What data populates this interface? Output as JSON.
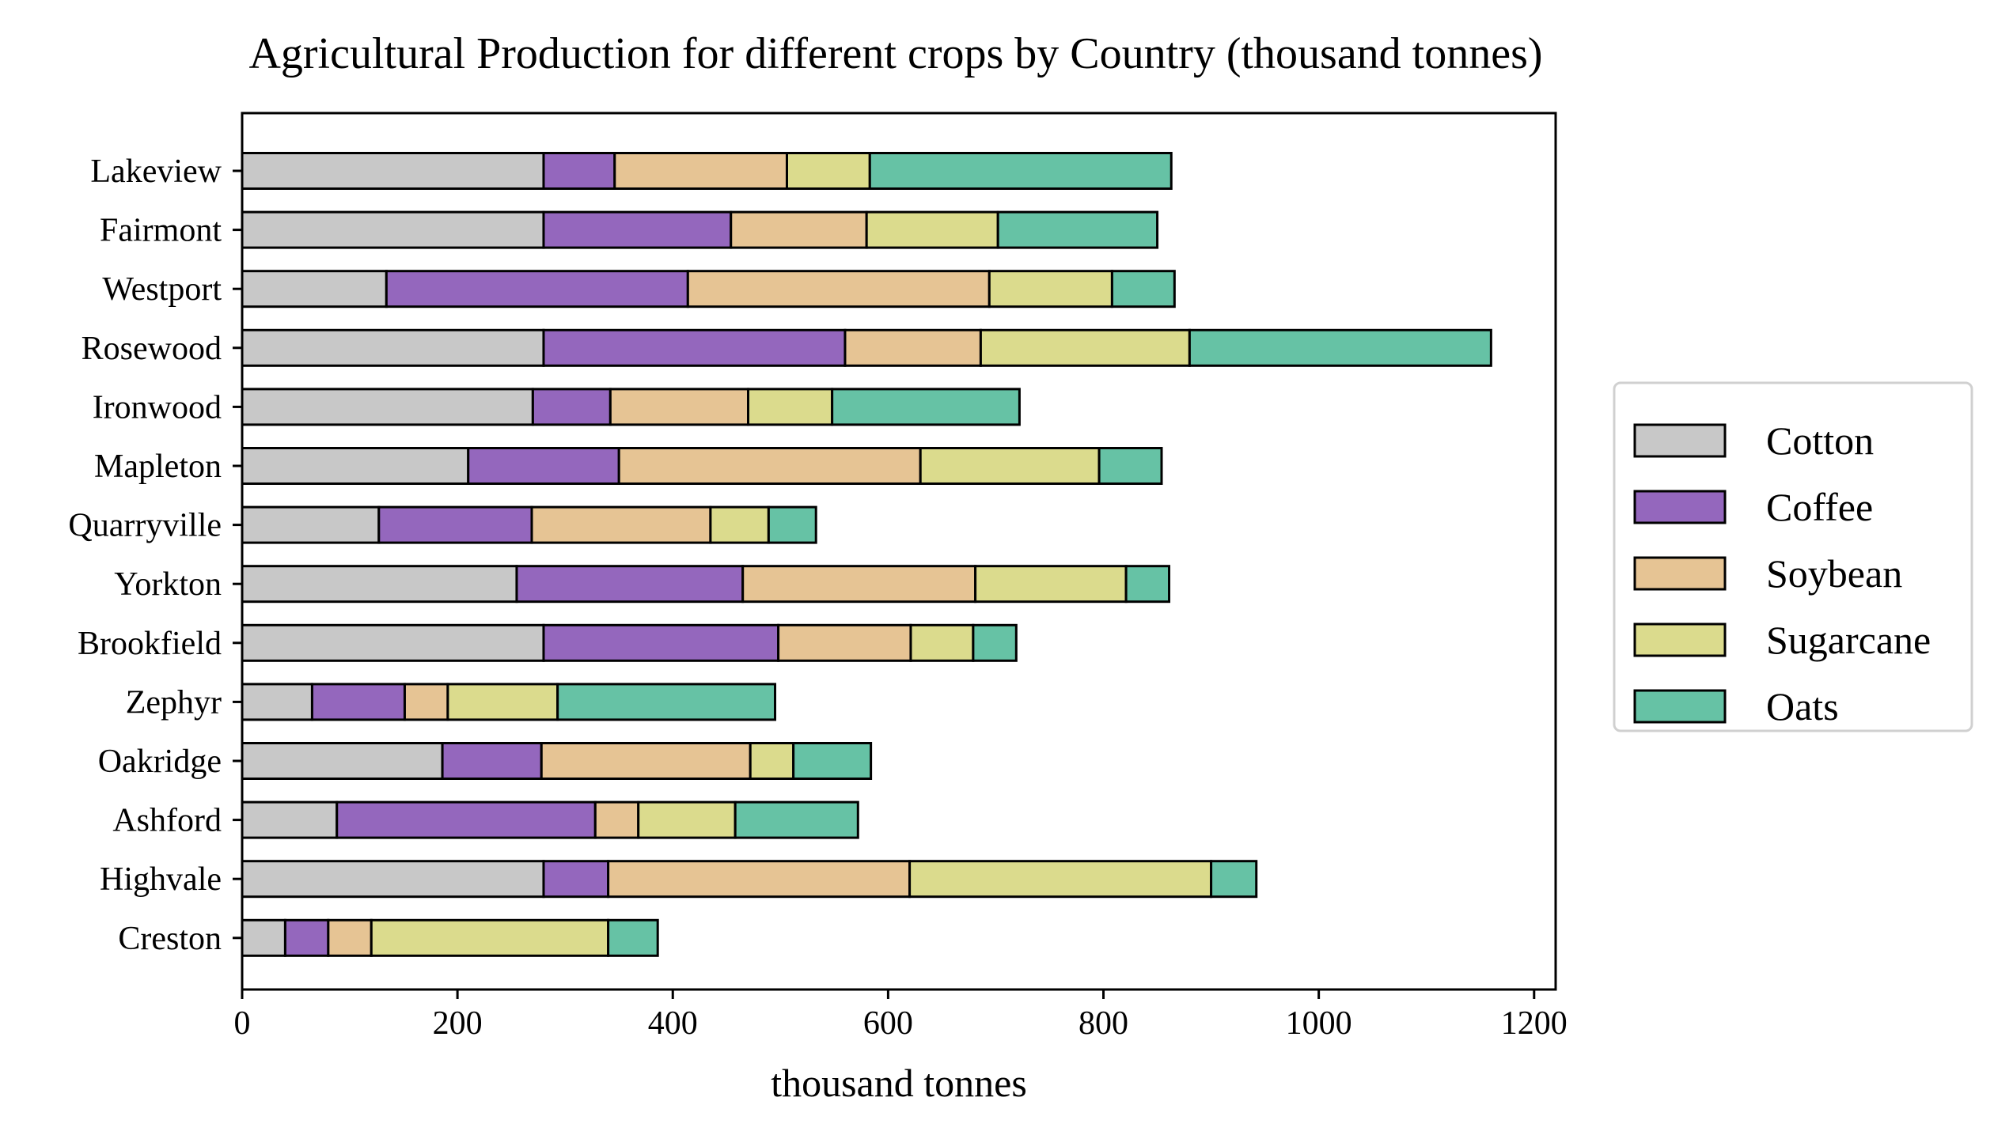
{
  "chart_data": {
    "type": "bar",
    "orientation": "horizontal",
    "stacked": true,
    "title": "Agricultural Production for different crops by Country (thousand tonnes)",
    "xlabel": "thousand tonnes",
    "ylabel": "",
    "xlim": [
      0,
      1220
    ],
    "xticks": [
      0,
      200,
      400,
      600,
      800,
      1000,
      1200
    ],
    "grid": false,
    "legend_position": "right",
    "categories": [
      "Lakeview",
      "Fairmont",
      "Westport",
      "Rosewood",
      "Ironwood",
      "Mapleton",
      "Quarryville",
      "Yorkton",
      "Brookfield",
      "Zephyr",
      "Oakridge",
      "Ashford",
      "Highvale",
      "Creston"
    ],
    "series": [
      {
        "name": "Cotton",
        "color": "#c8c8c8",
        "values": [
          280,
          280,
          134,
          280,
          270,
          210,
          127,
          255,
          280,
          65,
          186,
          88,
          280,
          40
        ]
      },
      {
        "name": "Coffee",
        "color": "#9467bd",
        "values": [
          66,
          174,
          280,
          280,
          72,
          140,
          142,
          210,
          218,
          86,
          92,
          240,
          60,
          40
        ]
      },
      {
        "name": "Soybean",
        "color": "#e6c494",
        "values": [
          160,
          126,
          280,
          126,
          128,
          280,
          166,
          216,
          123,
          40,
          194,
          40,
          280,
          40
        ]
      },
      {
        "name": "Sugarcane",
        "color": "#dbdb8d",
        "values": [
          77,
          122,
          114,
          194,
          78,
          166,
          54,
          140,
          58,
          102,
          40,
          90,
          280,
          220
        ]
      },
      {
        "name": "Oats",
        "color": "#66c2a5",
        "values": [
          280,
          148,
          58,
          280,
          174,
          58,
          44,
          40,
          40,
          202,
          72,
          114,
          42,
          46
        ]
      }
    ]
  }
}
